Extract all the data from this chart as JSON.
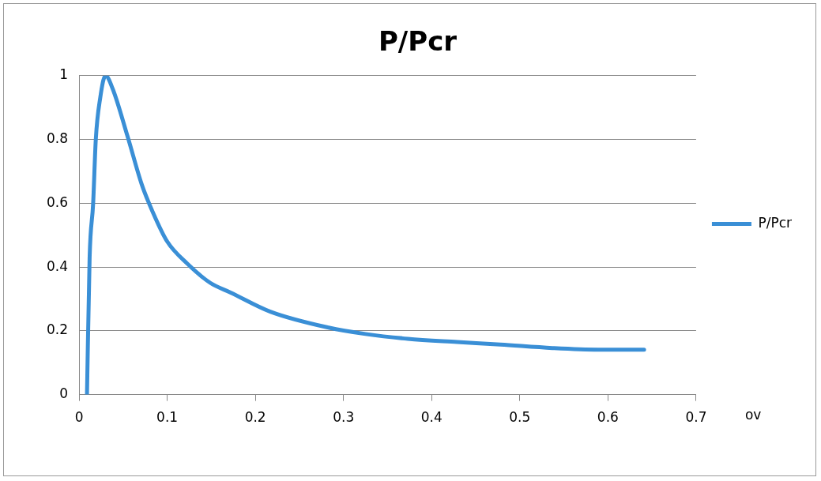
{
  "chart_data": {
    "type": "line",
    "title": "P/Pcr",
    "xlabel": "ov",
    "series": [
      {
        "name": "P/Pcr",
        "color": "#3a8fd6",
        "x": [
          0.009,
          0.012,
          0.016,
          0.019,
          0.024,
          0.03,
          0.038,
          0.055,
          0.071,
          0.084,
          0.1,
          0.123,
          0.149,
          0.172,
          0.217,
          0.283,
          0.325,
          0.373,
          0.429,
          0.478,
          0.537,
          0.589,
          0.641
        ],
        "values": [
          0,
          0.43,
          0.6,
          0.8,
          0.93,
          1,
          0.96,
          0.81,
          0.66,
          0.57,
          0.48,
          0.41,
          0.35,
          0.32,
          0.26,
          0.21,
          0.19,
          0.175,
          0.165,
          0.157,
          0.146,
          0.141,
          0.141
        ]
      }
    ],
    "xlim": [
      0,
      0.7
    ],
    "xticks": [
      0,
      0.1,
      0.2,
      0.3,
      0.4,
      0.5,
      0.6,
      0.7
    ],
    "ylim": [
      0,
      1
    ],
    "yticks": [
      0,
      0.2,
      0.4,
      0.6,
      0.8,
      1
    ],
    "grid": "y",
    "legend": "right",
    "marker": "none",
    "line_style": "solid"
  }
}
